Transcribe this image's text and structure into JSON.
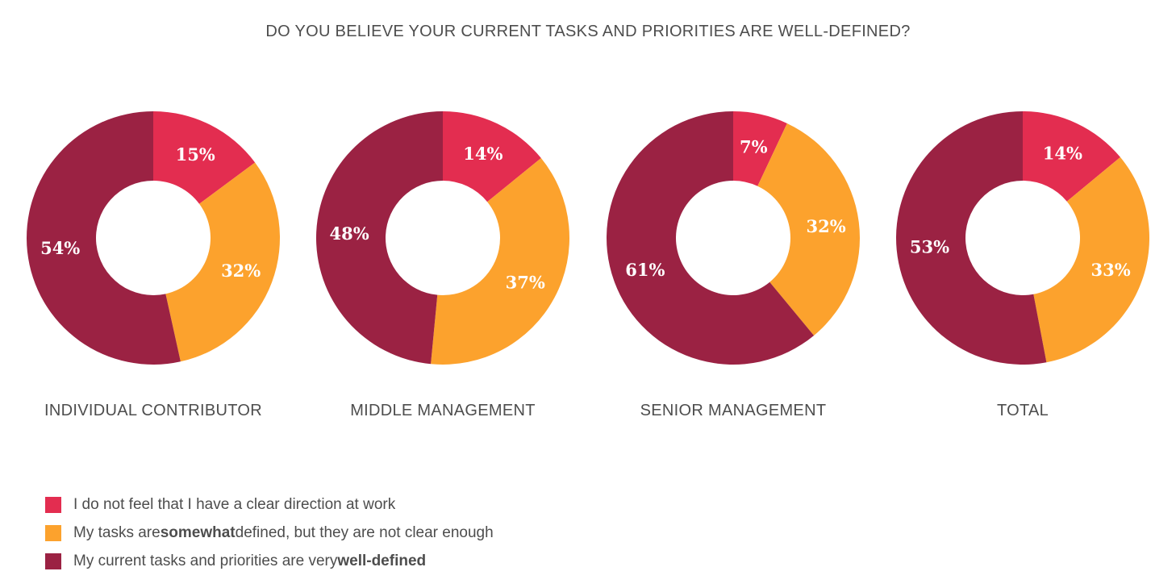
{
  "chart_data": {
    "type": "pie",
    "title": "DO YOU BELIEVE YOUR CURRENT TASKS AND PRIORITIES ARE WELL-DEFINED?",
    "legend_position": "bottom-left",
    "series_meta": [
      {
        "name": "I do not feel that I have a clear direction at work",
        "color": "#E32D50"
      },
      {
        "name": "My tasks are somewhat defined, but they are not clear enough",
        "color": "#FCA22D"
      },
      {
        "name": "My current tasks and priorities are very well-defined",
        "color": "#9B2243"
      }
    ],
    "charts": [
      {
        "label": "INDIVIDUAL CONTRIBUTOR",
        "values": [
          15,
          32,
          54
        ],
        "labels": [
          "15%",
          "32%",
          "54%"
        ]
      },
      {
        "label": "MIDDLE MANAGEMENT",
        "values": [
          14,
          37,
          48
        ],
        "labels": [
          "14%",
          "37%",
          "48%"
        ]
      },
      {
        "label": "SENIOR MANAGEMENT",
        "values": [
          7,
          32,
          61
        ],
        "labels": [
          "7%",
          "32%",
          "61%"
        ]
      },
      {
        "label": "TOTAL",
        "values": [
          14,
          33,
          53
        ],
        "labels": [
          "14%",
          "33%",
          "53%"
        ]
      }
    ]
  },
  "legend": {
    "items": [
      {
        "color": "#E32D50",
        "before": "I do not feel that I have a clear direction at work",
        "bold": "",
        "after": ""
      },
      {
        "color": "#FCA22D",
        "before": "My tasks are ",
        "bold": "somewhat",
        "after": " defined, but they are not clear enough"
      },
      {
        "color": "#9B2243",
        "before": "My current tasks and priorities are very ",
        "bold": "well-defined",
        "after": ""
      }
    ]
  }
}
